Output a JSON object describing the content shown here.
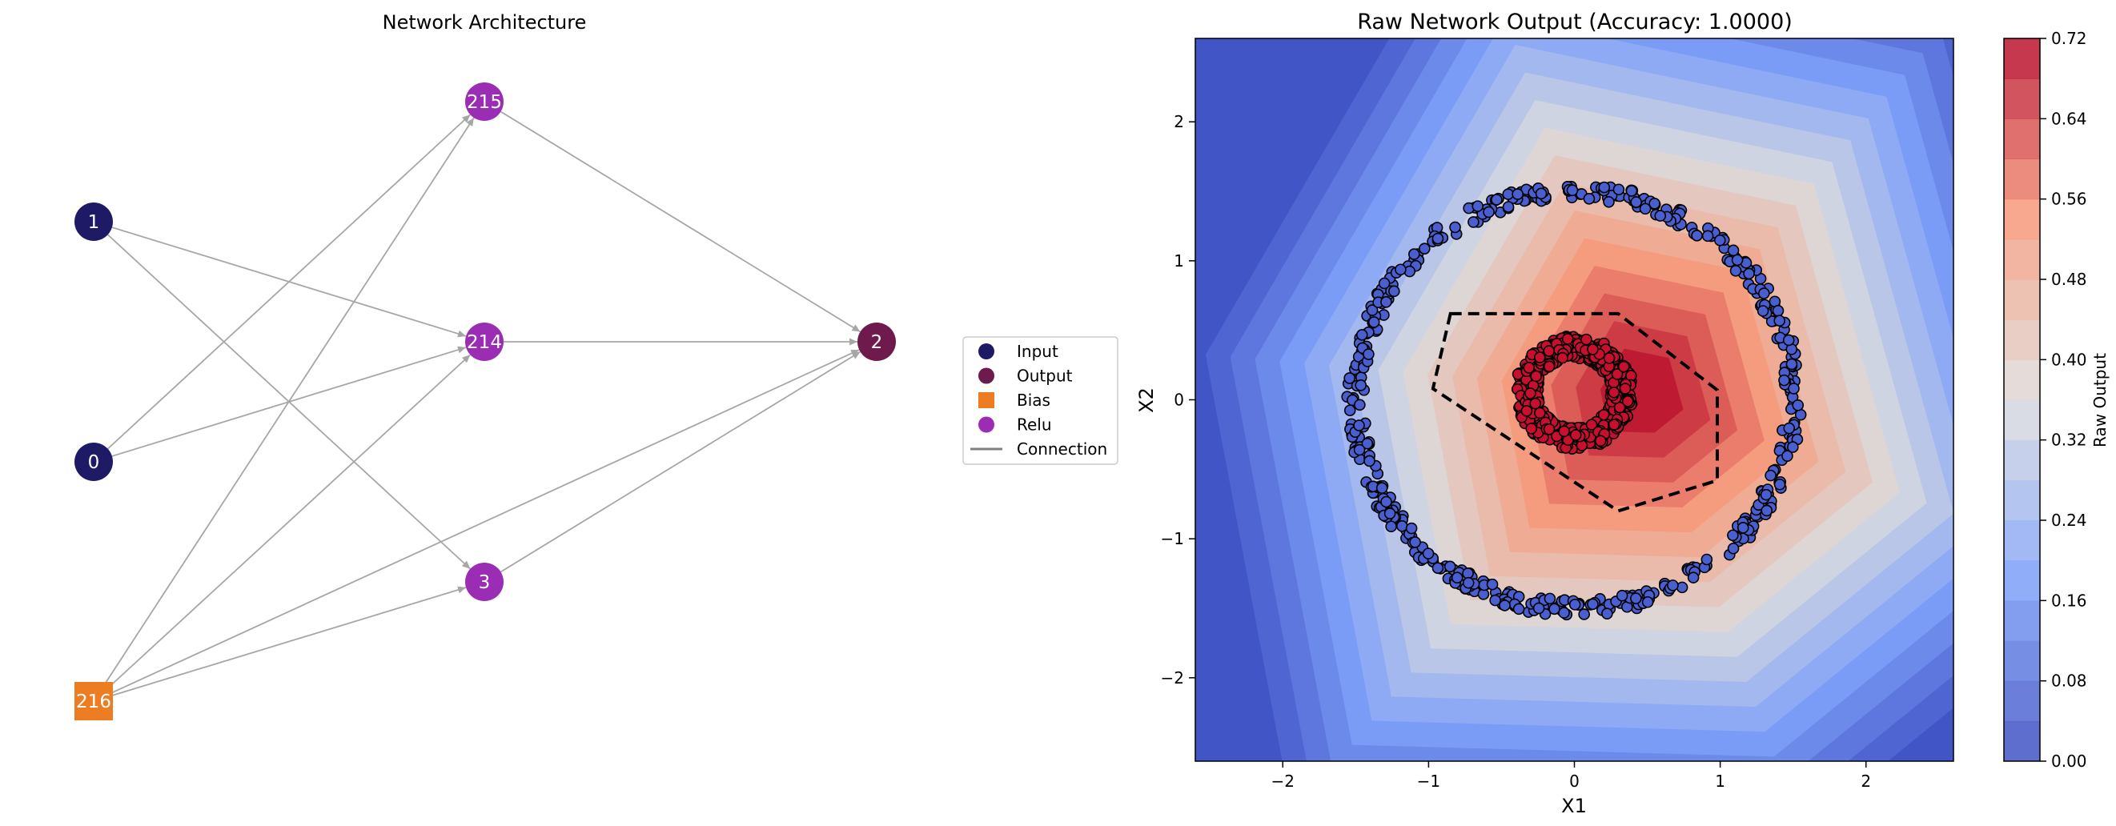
{
  "network": {
    "title": "Network Architecture",
    "nodes": [
      {
        "id": "1",
        "type": "input"
      },
      {
        "id": "0",
        "type": "input"
      },
      {
        "id": "216",
        "type": "bias"
      },
      {
        "id": "215",
        "type": "relu"
      },
      {
        "id": "214",
        "type": "relu"
      },
      {
        "id": "3",
        "type": "relu"
      },
      {
        "id": "2",
        "type": "output"
      }
    ],
    "edges": [
      [
        "1",
        "214"
      ],
      [
        "1",
        "3"
      ],
      [
        "0",
        "215"
      ],
      [
        "0",
        "214"
      ],
      [
        "216",
        "215"
      ],
      [
        "216",
        "214"
      ],
      [
        "216",
        "3"
      ],
      [
        "216",
        "2"
      ],
      [
        "215",
        "2"
      ],
      [
        "214",
        "2"
      ],
      [
        "3",
        "2"
      ]
    ],
    "colors": {
      "input": "#1f1a66",
      "output": "#6e1a4c",
      "bias": "#ec7d22",
      "relu": "#9b2db5",
      "connection": "#a6a6a6"
    }
  },
  "legend": {
    "items": [
      {
        "label": "Input",
        "shape": "circle",
        "color": "#1f1a66"
      },
      {
        "label": "Output",
        "shape": "circle",
        "color": "#6e1a4c"
      },
      {
        "label": "Bias",
        "shape": "square",
        "color": "#ec7d22"
      },
      {
        "label": "Relu",
        "shape": "circle",
        "color": "#9b2db5"
      },
      {
        "label": "Connection",
        "shape": "line",
        "color": "#808080"
      }
    ]
  },
  "chart_data": {
    "type": "scatter",
    "title": "Raw Network Output (Accuracy: 1.0000)",
    "xlabel": "X1",
    "ylabel": "X2",
    "xlim": [
      -2.6,
      2.6
    ],
    "ylim": [
      -2.6,
      2.6
    ],
    "xticks": [
      -2,
      -1,
      0,
      1,
      2
    ],
    "yticks": [
      -2,
      -1,
      0,
      1,
      2
    ],
    "contour": {
      "levels": [
        0.0,
        0.04,
        0.08,
        0.12,
        0.16,
        0.2,
        0.24,
        0.28,
        0.32,
        0.36,
        0.4,
        0.44,
        0.48,
        0.52,
        0.56,
        0.6,
        0.64,
        0.68,
        0.72
      ],
      "peak": [
        0.45,
        0.05
      ],
      "colormap": "coolwarm"
    },
    "decision_boundary": [
      [
        -0.85,
        0.62
      ],
      [
        0.3,
        0.62
      ],
      [
        0.98,
        0.07
      ],
      [
        0.98,
        -0.58
      ],
      [
        0.3,
        -0.8
      ],
      [
        -0.97,
        0.08
      ]
    ],
    "series": [
      {
        "class": 0,
        "color": "#4a5fcf",
        "shape": "ring",
        "center": [
          0.0,
          0.0
        ],
        "radius_mean": 1.5,
        "radius_spread": 0.06,
        "count": 500
      },
      {
        "class": 1,
        "color": "#c8102e",
        "shape": "ring",
        "center": [
          0.0,
          0.05
        ],
        "radius_mean": 0.33,
        "radius_spread": 0.08,
        "count": 500
      }
    ],
    "colorbar": {
      "label": "Raw Output",
      "ticks": [
        "0.00",
        "0.08",
        "0.16",
        "0.24",
        "0.32",
        "0.40",
        "0.48",
        "0.56",
        "0.64",
        "0.72"
      ]
    }
  }
}
